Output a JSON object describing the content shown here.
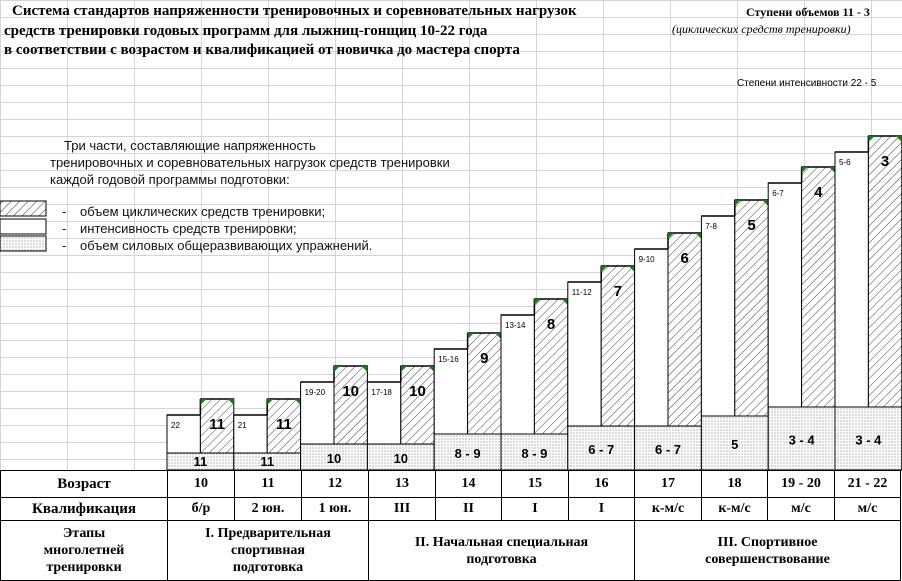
{
  "header": {
    "title_line1": "Система стандартов напряженности тренировочных и соревновательных нагрузок",
    "title_line2": "средств тренировки годовых программ для лыжниц-гонщиц  10-22 года",
    "title_line3": "в соответствии с возрастом и квалификацией от новичка до мастера спорта",
    "volume_steps": "Ступени объемов 11 - 3",
    "volume_note": "(циклических средств тренировки)",
    "intensity_steps": "Степени интенсивности  22 - 5"
  },
  "intro": {
    "line1": "Три части, составляющие напряженность",
    "line2": "тренировочных и соревновательных нагрузок средств тренировки",
    "line3": "каждой годовой программы подготовки:"
  },
  "legend": [
    {
      "dash": "-",
      "label": "объем циклических средств тренировки;",
      "pattern": "hatch"
    },
    {
      "dash": "-",
      "label": "интенсивность средств тренировки;",
      "pattern": "white"
    },
    {
      "dash": "-",
      "label": "объем силовых общеразвивающих упражнений.",
      "pattern": "dots"
    }
  ],
  "chart_data": {
    "type": "bar",
    "stacked": true,
    "columns": [
      {
        "age": "10",
        "qualification": "б/р",
        "strength_volume": "11",
        "intensity": "22",
        "cyclic_volume": "11",
        "level": 1
      },
      {
        "age": "11",
        "qualification": "2 юн.",
        "strength_volume": "11",
        "intensity": "21",
        "cyclic_volume": "11",
        "level": 1
      },
      {
        "age": "12",
        "qualification": "1 юн.",
        "strength_volume": "10",
        "intensity": "19-20",
        "cyclic_volume": "10",
        "level": 2
      },
      {
        "age": "13",
        "qualification": "III",
        "strength_volume": "10",
        "intensity": "17-18",
        "cyclic_volume": "10",
        "level": 2
      },
      {
        "age": "14",
        "qualification": "II",
        "strength_volume": "8 - 9",
        "intensity": "15-16",
        "cyclic_volume": "9",
        "level": 3
      },
      {
        "age": "15",
        "qualification": "I",
        "strength_volume": "8 - 9",
        "intensity": "13-14",
        "cyclic_volume": "8",
        "level": 4
      },
      {
        "age": "16",
        "qualification": "I",
        "strength_volume": "6 - 7",
        "intensity": "11-12",
        "cyclic_volume": "7",
        "level": 5
      },
      {
        "age": "17",
        "qualification": "к-м/с",
        "strength_volume": "6 - 7",
        "intensity": "9-10",
        "cyclic_volume": "6",
        "level": 6
      },
      {
        "age": "18",
        "qualification": "к-м/с",
        "strength_volume": "5",
        "intensity": "7-8",
        "cyclic_volume": "5",
        "level": 7
      },
      {
        "age": "19 - 20",
        "qualification": "м/с",
        "strength_volume": "3 - 4",
        "intensity": "6-7",
        "cyclic_volume": "4",
        "level": 8
      },
      {
        "age": "21 - 22",
        "qualification": "м/с",
        "strength_volume": "3 - 4",
        "intensity": "5-6",
        "cyclic_volume": "3",
        "level": 9
      }
    ]
  },
  "table": {
    "age_label": "Возраст",
    "qual_label": "Квалификация",
    "stages_label_1": "Этапы",
    "stages_label_2": "многолетней",
    "stages_label_3": "тренировки",
    "stage1_1": "I. Предварительная",
    "stage1_2": "спортивная",
    "stage1_3": "подготовка",
    "stage2_1": "II. Начальная специальная",
    "stage2_2": "подготовка",
    "stage3_1": "III. Спортивное",
    "stage3_2": "совершенствование"
  }
}
